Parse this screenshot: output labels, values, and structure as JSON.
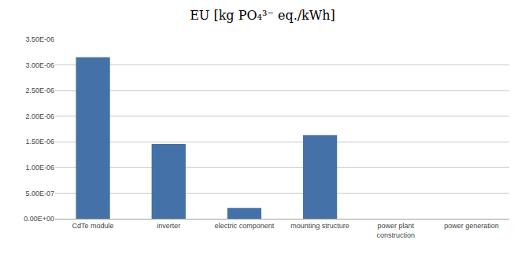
{
  "chart_data": {
    "type": "bar",
    "title": "EU [kg PO₄³⁻ eq./kWh]",
    "categories": [
      "CdTe module",
      "inverter",
      "electric component",
      "mounting structure",
      "power plant\nconstruction",
      "power generation"
    ],
    "values": [
      3.15e-06,
      1.46e-06,
      2.1e-07,
      1.63e-06,
      0.0,
      0.0
    ],
    "color": "#4472a8",
    "ylim": [
      0,
      3.5e-06
    ],
    "yticks": [
      {
        "value": 0.0,
        "label": "0.00E+00"
      },
      {
        "value": 5e-07,
        "label": "5.00E-07"
      },
      {
        "value": 1e-06,
        "label": "1.00E-06"
      },
      {
        "value": 1.5e-06,
        "label": "1.50E-06"
      },
      {
        "value": 2e-06,
        "label": "2.00E-06"
      },
      {
        "value": 2.5e-06,
        "label": "2.50E-06"
      },
      {
        "value": 3e-06,
        "label": "3.00E-06"
      },
      {
        "value": 3.5e-06,
        "label": "3.50E-06"
      }
    ],
    "grid": true
  }
}
